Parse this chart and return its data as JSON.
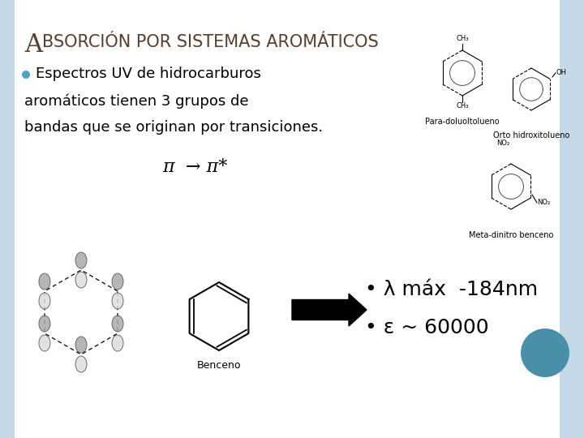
{
  "title_A": "A",
  "title_rest": "BSORCIÓN POR SISTEMAS AROMÁTICOS",
  "bullet_text_line1": "Espectros UV de hidrocarburos",
  "bullet_text_line2": "aromáticos tienen 3 grupos de",
  "bullet_text_line3": "bandas que se originan por transiciones.",
  "pi_line": "π  → π*",
  "bullet1_sym": "λ",
  "bullet1_text": " máx  -184nm",
  "bullet2_sym": "ε",
  "bullet2_text": " ~ 60000",
  "label_benceno": "Benceno",
  "label_para": "Para-doluoltolueno",
  "label_orto": "Orto hidroxitolueno",
  "label_meta": "Meta-dinitro benceno",
  "bg_color": "#ffffff",
  "left_strip_color": "#c5d9e8",
  "right_strip_color": "#c5d9e8",
  "title_color": "#5a3e2b",
  "text_color": "#000000",
  "bullet_dot_color": "#4da6c8",
  "teal_circle_color": "#4a8fa8",
  "title_A_fontsize": 18,
  "title_rest_fontsize": 15,
  "body_fontsize": 13,
  "pi_fontsize": 16,
  "result_fontsize": 18,
  "label_fontsize": 7
}
